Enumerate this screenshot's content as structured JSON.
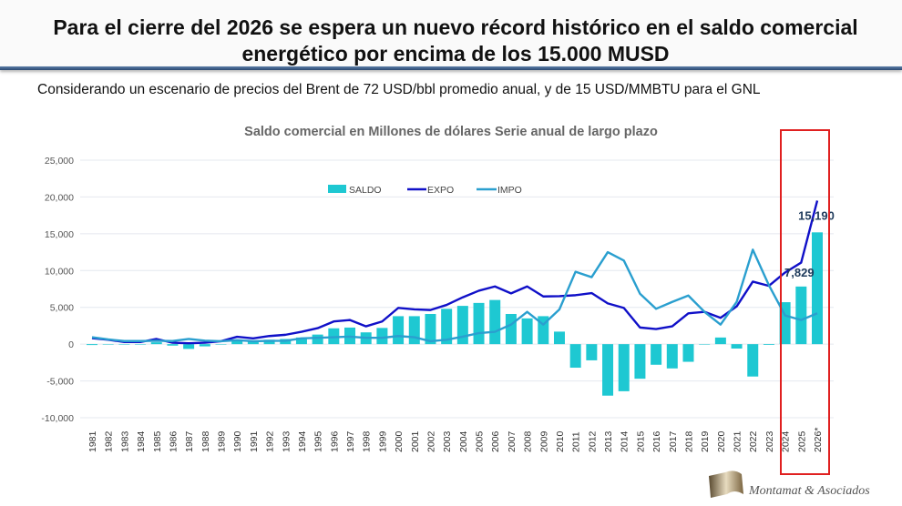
{
  "header": {
    "title": "Para el cierre del 2026 se espera un nuevo récord histórico en el saldo comercial energético por encima de los 15.000 MUSD",
    "subtitle": "Considerando un escenario de precios del Brent de 72 USD/bbl promedio anual, y de 15 USD/MMBTU para el GNL"
  },
  "logo": {
    "text": "Montamat & Asociados"
  },
  "chart_data": {
    "type": "bar+line",
    "title": "Saldo comercial en Millones de dólares Serie anual de largo plazo",
    "xlabel": "",
    "ylabel": "",
    "ylim": [
      -10000,
      25000
    ],
    "yticks": [
      "-10,000",
      "-5,000",
      "0",
      "5,000",
      "10,000",
      "15,000",
      "20,000",
      "25,000"
    ],
    "ytick_values": [
      -10000,
      -5000,
      0,
      5000,
      10000,
      15000,
      20000,
      25000
    ],
    "grid": true,
    "legend": "top-center",
    "categories": [
      "1981",
      "1982",
      "1983",
      "1984",
      "1985",
      "1986",
      "1987",
      "1988",
      "1989",
      "1990",
      "1991",
      "1992",
      "1993",
      "1994",
      "1995",
      "1996",
      "1997",
      "1998",
      "1999",
      "2000",
      "2001",
      "2002",
      "2003",
      "2004",
      "2005",
      "2006",
      "2007",
      "2008",
      "2009",
      "2010",
      "2011",
      "2012",
      "2013",
      "2014",
      "2015",
      "2016",
      "2017",
      "2018",
      "2019",
      "2020",
      "2021",
      "2022",
      "2023",
      "2024",
      "2025",
      "2026*"
    ],
    "series": [
      {
        "name": "SALDO",
        "kind": "bar",
        "color": "#1ec8d2",
        "values": [
          -120,
          0,
          -50,
          -50,
          250,
          -200,
          -650,
          -300,
          0,
          470,
          380,
          600,
          700,
          900,
          1300,
          2150,
          2250,
          1600,
          2200,
          3800,
          3800,
          4100,
          4800,
          5200,
          5600,
          6000,
          4100,
          3500,
          3800,
          1700,
          -3200,
          -2200,
          -7000,
          -6400,
          -4700,
          -2800,
          -3300,
          -2400,
          0,
          900,
          -600,
          -4400,
          -100,
          5700,
          7829,
          15190
        ]
      },
      {
        "name": "EXPO",
        "kind": "line",
        "color": "#1010c8",
        "values": [
          820,
          600,
          290,
          290,
          700,
          200,
          120,
          200,
          400,
          1000,
          780,
          1100,
          1270,
          1680,
          2170,
          3080,
          3280,
          2420,
          3080,
          4920,
          4720,
          4640,
          5330,
          6360,
          7260,
          7840,
          6900,
          7840,
          6480,
          6520,
          6650,
          6940,
          5540,
          4920,
          2260,
          2050,
          2420,
          4190,
          4390,
          3570,
          5130,
          8500,
          7920,
          9730,
          11080,
          19500
        ]
      },
      {
        "name": "IMPO",
        "kind": "line",
        "color": "#2a9fcf",
        "values": [
          940,
          640,
          420,
          420,
          460,
          420,
          700,
          480,
          400,
          530,
          400,
          440,
          460,
          780,
          860,
          940,
          1020,
          860,
          860,
          1100,
          940,
          400,
          600,
          1020,
          1500,
          1680,
          2660,
          4390,
          2660,
          4720,
          9840,
          9100,
          12500,
          11360,
          6850,
          4800,
          5740,
          6600,
          4390,
          2660,
          5740,
          12840,
          8000,
          3900,
          3280,
          4190
        ]
      }
    ],
    "data_labels": [
      {
        "category": "2025",
        "text": "7,829"
      },
      {
        "category": "2026*",
        "text": "15,190"
      }
    ],
    "highlight": {
      "categories": [
        "2024",
        "2025",
        "2026*"
      ],
      "color": "#e02020"
    }
  }
}
